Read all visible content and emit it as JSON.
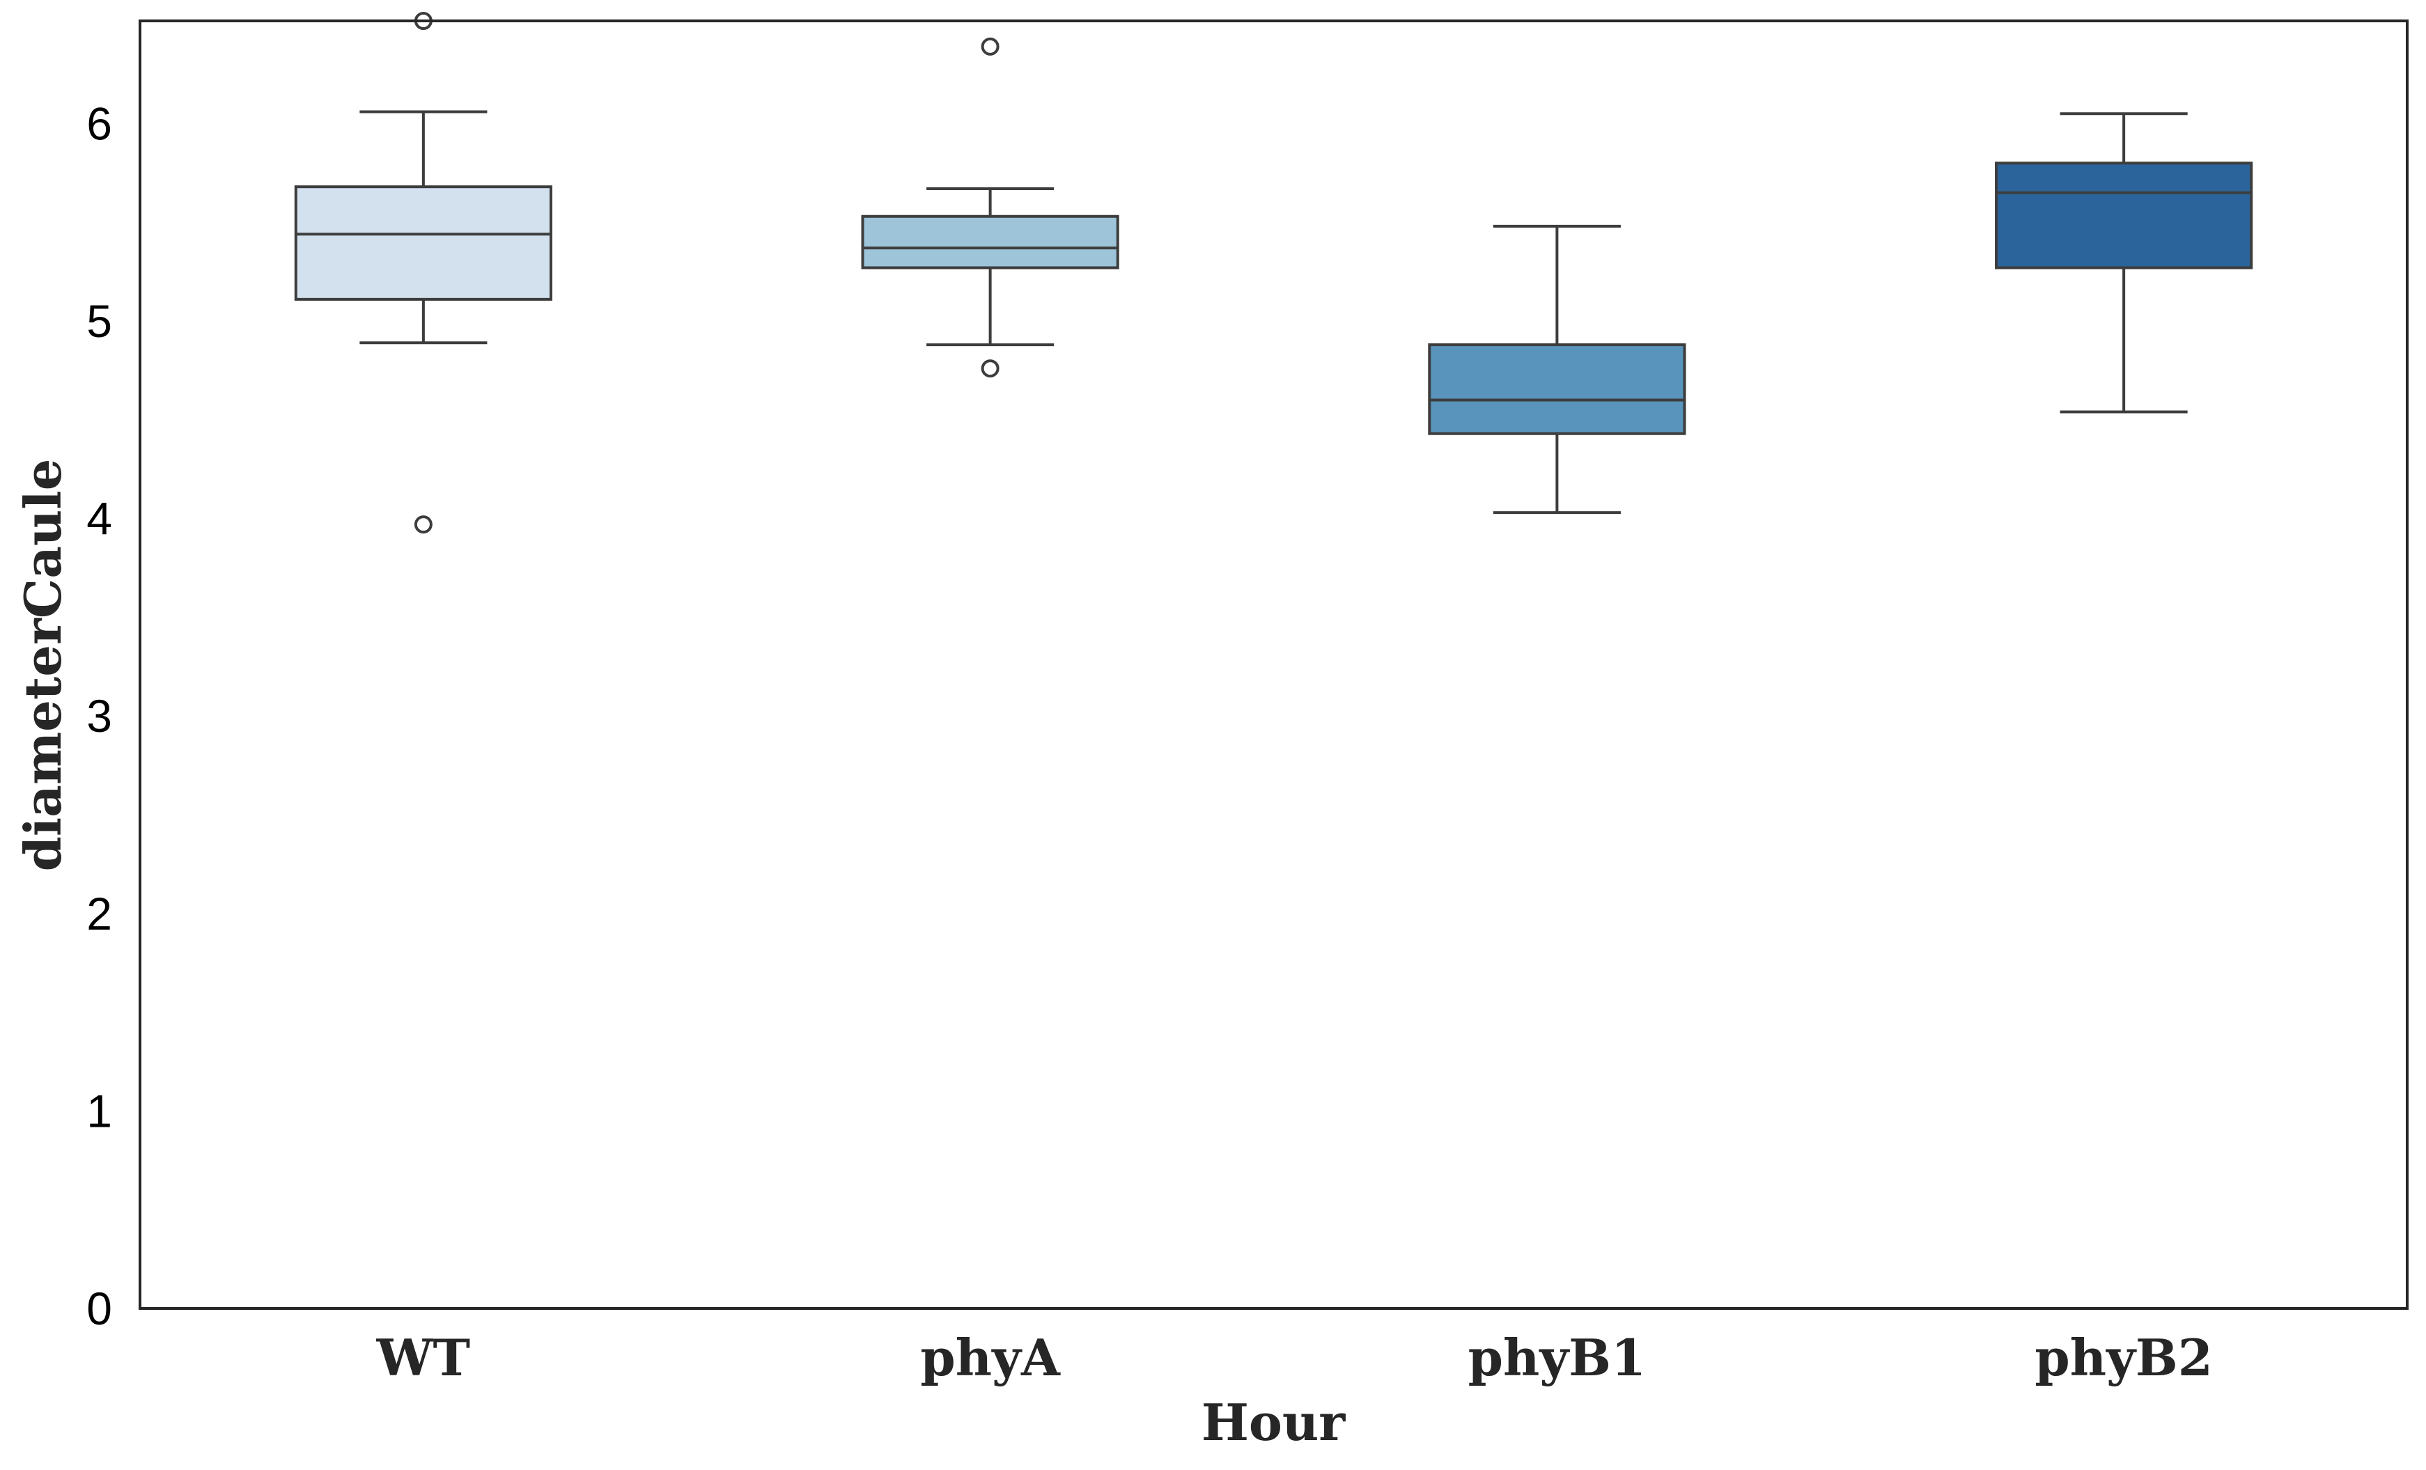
{
  "chart_data": {
    "type": "box",
    "title": "",
    "xlabel": "Hour",
    "ylabel": "diameterCaule",
    "ylim": [
      0,
      6.52
    ],
    "yticks": [
      0,
      1,
      2,
      3,
      4,
      5,
      6
    ],
    "ytick_labels": [
      "0",
      "1",
      "2",
      "3",
      "4",
      "5",
      "6"
    ],
    "grid": false,
    "legend": "none",
    "categories": [
      "WT",
      "phyA",
      "phyB1",
      "phyB2"
    ],
    "boxes": [
      {
        "category": "WT",
        "whisker_low": 4.89,
        "q1": 5.11,
        "median": 5.44,
        "q3": 5.68,
        "whisker_high": 6.06,
        "outliers": [
          3.97,
          6.52
        ],
        "color": "#d3e1ef"
      },
      {
        "category": "phyA",
        "whisker_low": 4.88,
        "q1": 5.27,
        "median": 5.37,
        "q3": 5.53,
        "whisker_high": 5.67,
        "outliers": [
          4.76,
          6.39
        ],
        "color": "#9ec4da"
      },
      {
        "category": "phyB1",
        "whisker_low": 4.03,
        "q1": 4.43,
        "median": 4.6,
        "q3": 4.88,
        "whisker_high": 5.48,
        "outliers": [],
        "color": "#5894bb"
      },
      {
        "category": "phyB2",
        "whisker_low": 4.54,
        "q1": 5.27,
        "median": 5.65,
        "q3": 5.8,
        "whisker_high": 6.05,
        "outliers": [],
        "color": "#2a649a"
      }
    ],
    "line_color": "#3d3d3d"
  }
}
